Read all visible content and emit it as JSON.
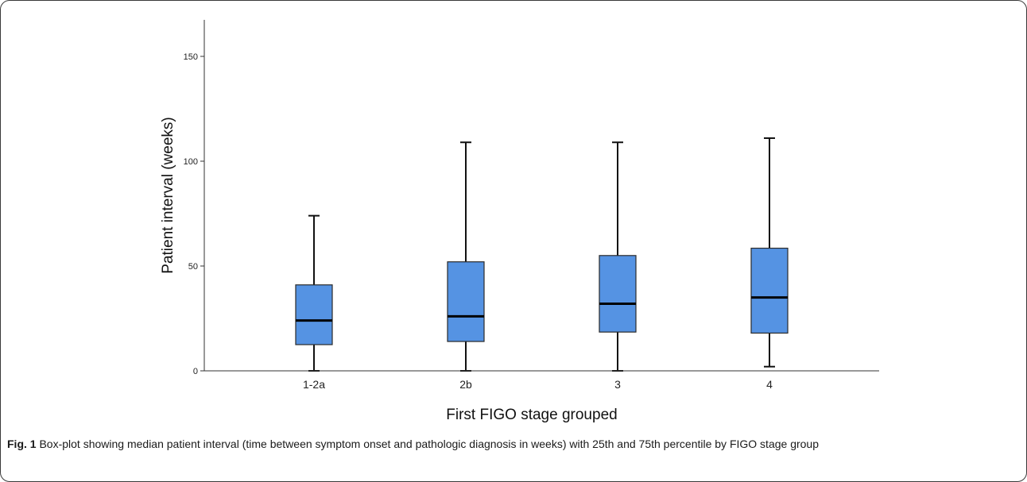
{
  "chart_data": {
    "type": "box",
    "title": "",
    "xlabel": "First FIGO stage grouped",
    "ylabel": "Patient interval (weeks)",
    "ylim": [
      0,
      166
    ],
    "yticks": [
      0,
      50,
      100,
      150
    ],
    "grid": false,
    "categories": [
      "1-2a",
      "2b",
      "3",
      "4"
    ],
    "boxes": [
      {
        "category": "1-2a",
        "min": 0,
        "q1": 12.5,
        "median": 24,
        "q3": 41,
        "max": 74
      },
      {
        "category": "2b",
        "min": 0,
        "q1": 14,
        "median": 26,
        "q3": 52,
        "max": 109
      },
      {
        "category": "3",
        "min": 0,
        "q1": 18.5,
        "median": 32,
        "q3": 55,
        "max": 109
      },
      {
        "category": "4",
        "min": 2,
        "q1": 18,
        "median": 35,
        "q3": 58.5,
        "max": 111
      }
    ],
    "box_color": "#5593e3",
    "box_edge_color": "#2a2a2a",
    "median_color": "#000000"
  },
  "caption": {
    "label": "Fig. 1",
    "text": " Box-plot showing median patient interval (time between symptom onset and pathologic diagnosis in weeks) with 25th and 75th percentile by FIGO stage group"
  }
}
